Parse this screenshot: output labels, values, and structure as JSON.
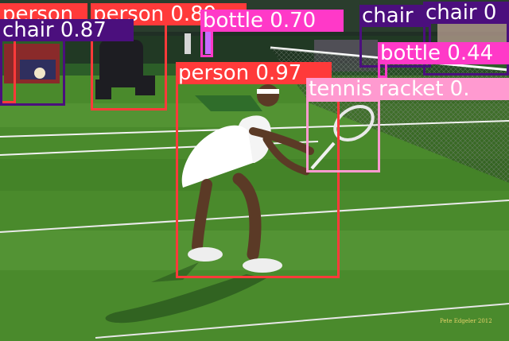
{
  "photo_credit": "Pete Edgeler 2012",
  "detections": [
    {
      "label": "person 0.97",
      "class": "person",
      "color": "#ff3a3a"
    },
    {
      "label": "person 0.89",
      "class": "person",
      "color": "#ff3a3a"
    },
    {
      "label": "person",
      "class": "person",
      "color": "#ff3a3a"
    },
    {
      "label": "chair 0.87",
      "class": "chair",
      "color": "#4b0f7d"
    },
    {
      "label": "chair",
      "class": "chair",
      "color": "#4b0f7d"
    },
    {
      "label": "chair 0",
      "class": "chair",
      "color": "#4b0f7d"
    },
    {
      "label": "bottle 0.70",
      "class": "bottle",
      "color": "#ff39c8"
    },
    {
      "label": "bottle 0.44",
      "class": "bottle",
      "color": "#ff39c8"
    },
    {
      "label": "tennis racket 0.",
      "class": "tennis racket",
      "color": "#ff9ad0"
    }
  ]
}
